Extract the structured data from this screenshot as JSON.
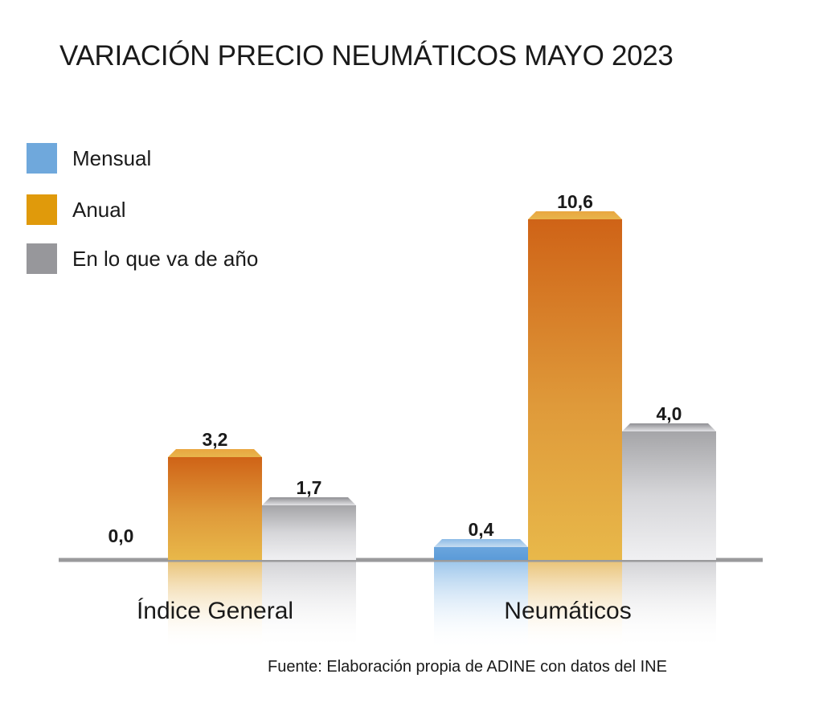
{
  "chart_data": {
    "type": "bar",
    "title": "VARIACIÓN PRECIO NEUMÁTICOS MAYO 2023",
    "categories": [
      "Índice General",
      "Neumáticos"
    ],
    "series": [
      {
        "name": "Mensual",
        "color": "#6fa8dc",
        "values": [
          0.0,
          0.4
        ],
        "labels": [
          "0,0",
          "0,4"
        ]
      },
      {
        "name": "Anual",
        "color": "#e09a0b",
        "values": [
          3.2,
          10.6
        ],
        "labels": [
          "3,2",
          "10,6"
        ]
      },
      {
        "name": "En lo que va de año",
        "color": "#97979b",
        "values": [
          1.7,
          4.0
        ],
        "labels": [
          "1,7",
          "4,0"
        ]
      }
    ],
    "xlabel": "",
    "ylabel": "",
    "ylim": [
      0,
      10.6
    ],
    "grid": false,
    "legend_position": "top-left",
    "source": "Fuente: Elaboración propia de ADINE con datos del INE"
  }
}
